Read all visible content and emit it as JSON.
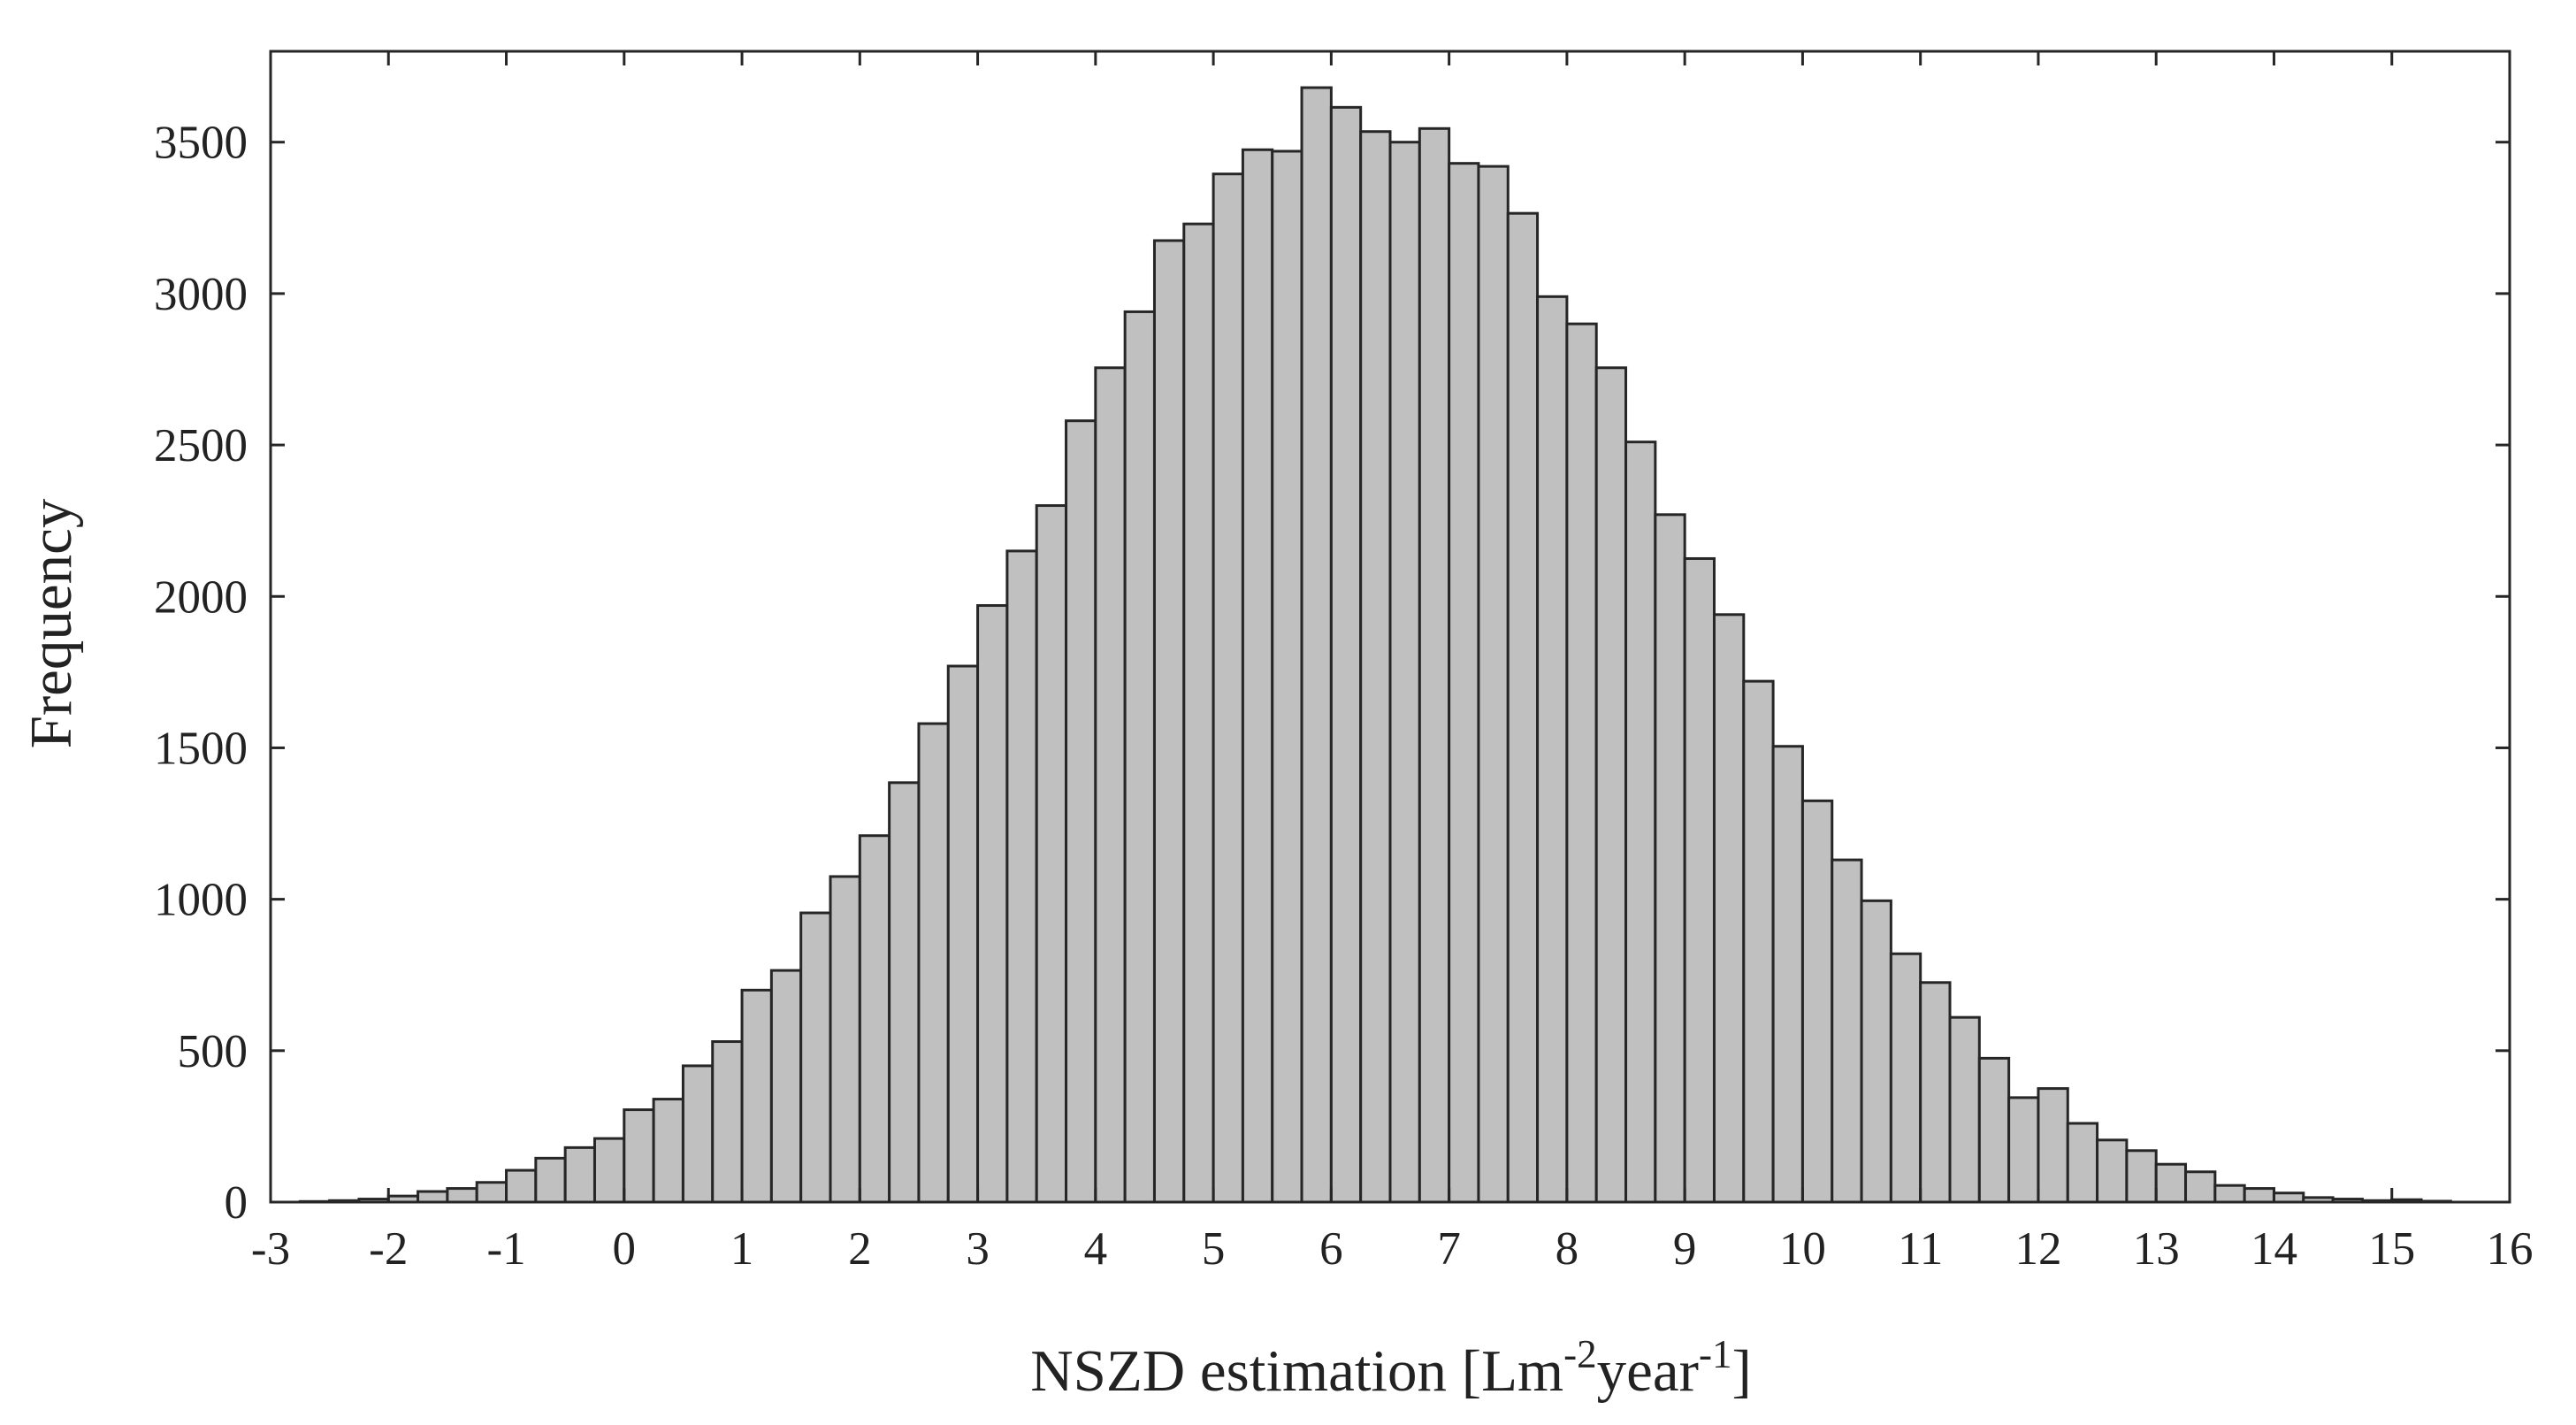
{
  "chart_data": {
    "type": "bar",
    "title": "",
    "xlabel": {
      "parts": [
        {
          "text": "NSZD estimation [Lm",
          "sup": false
        },
        {
          "text": "-2",
          "sup": true
        },
        {
          "text": "year",
          "sup": false
        },
        {
          "text": "-1",
          "sup": true
        },
        {
          "text": "]",
          "sup": false
        }
      ]
    },
    "ylabel": "Frequency",
    "xlim": [
      -3,
      16
    ],
    "ylim": [
      0,
      3800
    ],
    "bin_start": -2.75,
    "bin_width": 0.25,
    "x_ticks": [
      "-3",
      "-2",
      "-1",
      "0",
      "1",
      "2",
      "3",
      "4",
      "5",
      "6",
      "7",
      "8",
      "9",
      "10",
      "11",
      "12",
      "13",
      "14",
      "15",
      "16"
    ],
    "y_ticks": [
      "0",
      "500",
      "1000",
      "1500",
      "2000",
      "2500",
      "3000",
      "3500"
    ],
    "values": [
      2,
      5,
      10,
      20,
      35,
      45,
      65,
      105,
      145,
      180,
      210,
      305,
      340,
      450,
      530,
      700,
      765,
      955,
      1075,
      1210,
      1385,
      1580,
      1770,
      1970,
      2150,
      2300,
      2580,
      2755,
      2940,
      3175,
      3230,
      3395,
      3475,
      3470,
      3680,
      3615,
      3535,
      3500,
      3545,
      3430,
      3420,
      3265,
      2990,
      2900,
      2755,
      2510,
      2270,
      2125,
      1940,
      1720,
      1505,
      1325,
      1130,
      995,
      820,
      725,
      610,
      475,
      345,
      375,
      260,
      205,
      170,
      125,
      100,
      55,
      45,
      30,
      15,
      10,
      5,
      8,
      3
    ],
    "bar_color": "#c0c0c0",
    "bar_edge_color": "#262626",
    "axis_color": "#262626",
    "grid": false,
    "legend": false
  }
}
